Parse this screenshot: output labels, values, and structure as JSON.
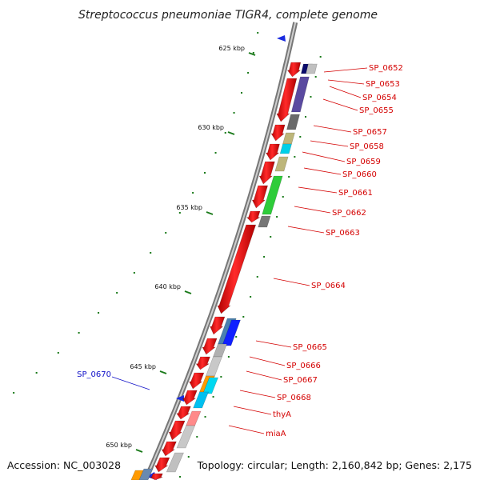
{
  "title": "Streptococcus pneumoniae TIGR4, complete genome",
  "accession": "Accession: NC_003028",
  "topology": "Topology: circular; Length: 2,160,842 bp; Genes: 2,175",
  "colors": {
    "backbone": "#8c8c8c",
    "forward_gene": "#ff0000",
    "forward_label": "#d40000",
    "reverse_label": "#1010c8",
    "tick": "#1a7a1a"
  },
  "scale_labels": [
    "625 kbp",
    "630 kbp",
    "635 kbp",
    "640 kbp",
    "645 kbp",
    "650 kbp"
  ],
  "gene_labels_right": [
    "SP_0652",
    "SP_0653",
    "SP_0654",
    "SP_0655",
    "SP_0657",
    "SP_0658",
    "SP_0659",
    "SP_0660",
    "SP_0661",
    "SP_0662",
    "SP_0663",
    "SP_0664",
    "SP_0665",
    "SP_0666",
    "SP_0667",
    "SP_0668",
    "thyA",
    "miaA"
  ],
  "gene_labels_left": [
    "SP_0670"
  ]
}
